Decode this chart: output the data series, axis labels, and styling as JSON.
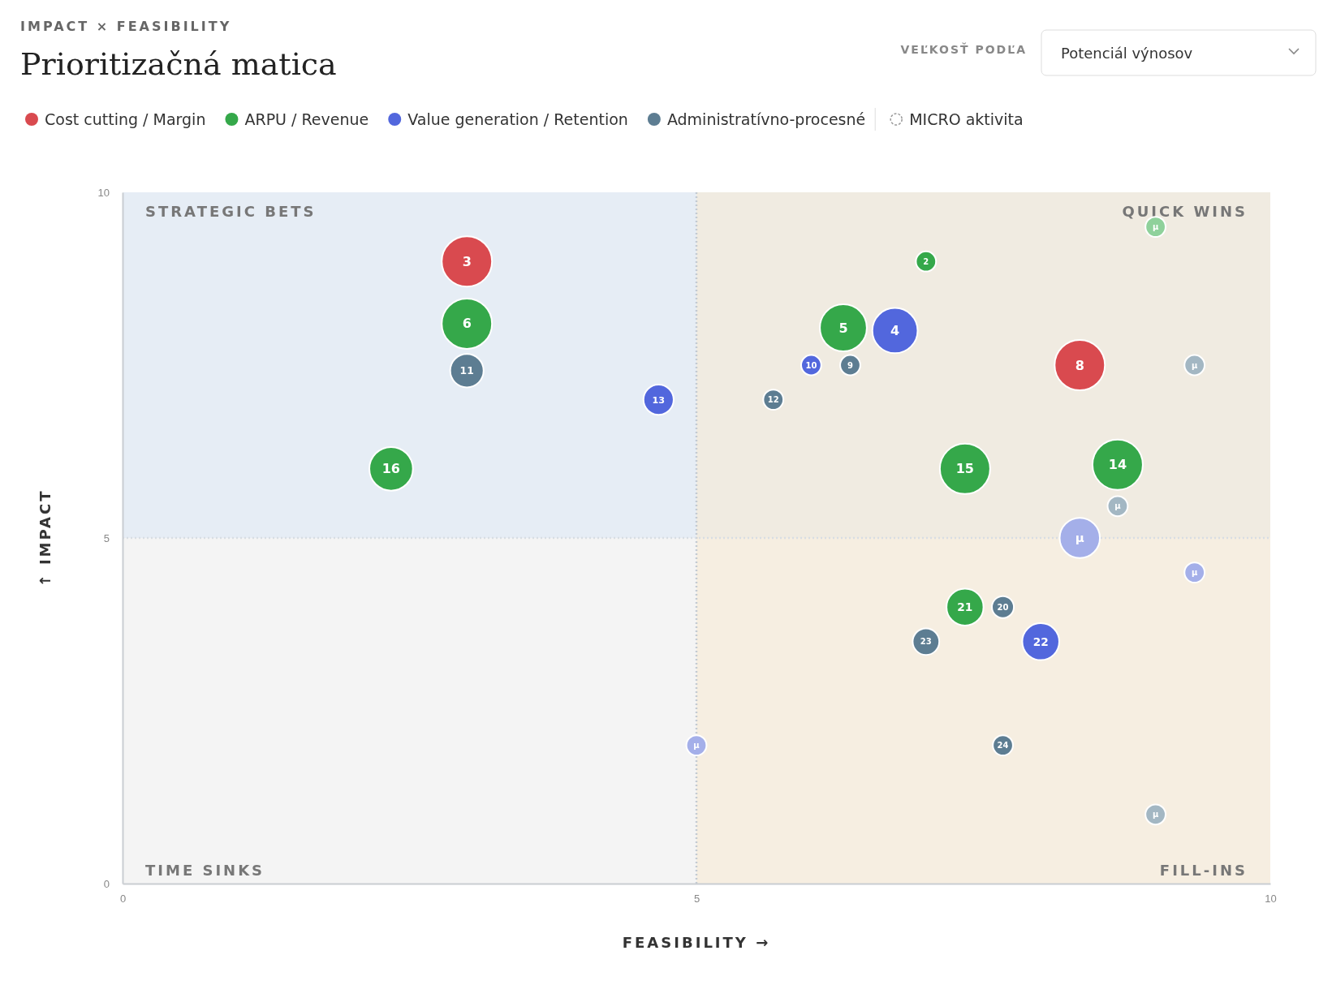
{
  "chart_data": {
    "type": "bubble",
    "title": "Prioritizačná matica",
    "subtitle": "IMPACT × FEASIBILITY",
    "xlabel": "FEASIBILITY →",
    "ylabel": "↑ IMPACT",
    "xlim": [
      0,
      10
    ],
    "ylim": [
      0,
      10
    ],
    "xticks": [
      0,
      5,
      10
    ],
    "yticks": [
      0,
      5,
      10
    ],
    "grid": false,
    "legend": "top",
    "marker": "circle",
    "annotations": [
      "VEĽKOSŤ PODĽA",
      "Potenciál výnosov",
      "MICRO aktivita",
      "STRATEGIC BETS",
      "QUICK WINS",
      "TIME SINKS",
      "FILL-INS",
      {
        "text": "3",
        "x": 3.0,
        "y": 9.0
      },
      {
        "text": "8",
        "x": 8.34,
        "y": 7.5
      },
      {
        "text": "6",
        "x": 3.0,
        "y": 8.1
      },
      {
        "text": "16",
        "x": 2.34,
        "y": 6.0
      },
      {
        "text": "2",
        "x": 7.0,
        "y": 9.0
      },
      {
        "text": "5",
        "x": 6.28,
        "y": 8.04
      },
      {
        "text": "15",
        "x": 7.34,
        "y": 6.0
      },
      {
        "text": "14",
        "x": 8.67,
        "y": 6.06
      },
      {
        "text": "21",
        "x": 7.34,
        "y": 4.0
      },
      {
        "text": "μ",
        "x": 9.0,
        "y": 9.5
      },
      {
        "text": "4",
        "x": 6.73,
        "y": 8.0
      },
      {
        "text": "13",
        "x": 4.67,
        "y": 7.0
      },
      {
        "text": "10",
        "x": 6.0,
        "y": 7.5
      },
      {
        "text": "22",
        "x": 8.0,
        "y": 3.5
      },
      {
        "text": "μ",
        "x": 8.34,
        "y": 5.0
      },
      {
        "text": "μ",
        "x": 9.34,
        "y": 4.5
      },
      {
        "text": "μ",
        "x": 5.0,
        "y": 2.0
      },
      {
        "text": "11",
        "x": 3.0,
        "y": 7.42
      },
      {
        "text": "9",
        "x": 6.34,
        "y": 7.5
      },
      {
        "text": "12",
        "x": 5.67,
        "y": 7.0
      },
      {
        "text": "20",
        "x": 7.67,
        "y": 4.0
      },
      {
        "text": "23",
        "x": 7.0,
        "y": 3.5
      },
      {
        "text": "24",
        "x": 7.67,
        "y": 2.0
      },
      {
        "text": "μ",
        "x": 9.34,
        "y": 7.5
      },
      {
        "text": "μ",
        "x": 8.67,
        "y": 5.46
      },
      {
        "text": "μ",
        "x": 9.0,
        "y": 1.0
      }
    ],
    "ref_lines": [
      {
        "axis": "x",
        "value": 5,
        "line_style": "dotted",
        "color": "#c3cad2"
      },
      {
        "axis": "y",
        "value": 5,
        "line_style": "dotted",
        "color": "#d8dde3"
      }
    ],
    "bands": [
      {
        "axis": "y",
        "from": 5,
        "to": 10,
        "color": "#dce8f5"
      },
      {
        "axis": "x",
        "from": 5,
        "to": 10,
        "color": "#f7ead3"
      }
    ],
    "series": [
      {
        "name": "Cost cutting / Margin",
        "color": "#d94a4f",
        "x": [
          3.0,
          8.34
        ],
        "values": [
          9.0,
          7.5
        ],
        "sizes": [
          1,
          1
        ]
      },
      {
        "name": "ARPU / Revenue",
        "color": "#35a84a",
        "x": [
          3.0,
          2.34,
          7.0,
          6.28,
          7.34,
          8.67,
          7.34,
          9.0
        ],
        "values": [
          8.1,
          6.0,
          9.0,
          8.04,
          6.0,
          6.06,
          4.0,
          9.5
        ],
        "sizes": [
          1,
          0.75,
          0.16,
          0.87,
          1,
          1,
          0.54,
          0.16
        ],
        "colors": [
          "#35a84a",
          "#35a84a",
          "#35a84a",
          "#35a84a",
          "#35a84a",
          "#35a84a",
          "#35a84a",
          "#8fd19b"
        ]
      },
      {
        "name": "Value generation / Retention",
        "color": "#5267dd",
        "x": [
          6.73,
          4.67,
          6.0,
          8.0,
          8.34,
          9.34,
          5.0
        ],
        "values": [
          8.0,
          7.0,
          7.5,
          3.5,
          5.0,
          4.5,
          2.0
        ],
        "sizes": [
          0.81,
          0.36,
          0.16,
          0.54,
          0.64,
          0.16,
          0.16
        ],
        "colors": [
          "#5267dd",
          "#5267dd",
          "#5267dd",
          "#5267dd",
          "#a4afe9",
          "#a4afe9",
          "#a4afe9"
        ]
      },
      {
        "name": "Administratívno-procesné",
        "color": "#5d7d92",
        "x": [
          3.0,
          6.34,
          5.67,
          7.67,
          7.0,
          7.67,
          9.34,
          8.67,
          9.0
        ],
        "values": [
          7.42,
          7.5,
          7.0,
          4.0,
          3.5,
          2.0,
          7.5,
          5.46,
          1.0
        ],
        "sizes": [
          0.44,
          0.16,
          0.16,
          0.19,
          0.28,
          0.16,
          0.16,
          0.16,
          0.16
        ],
        "colors": [
          "#5d7d92",
          "#5d7d92",
          "#5d7d92",
          "#5d7d92",
          "#5d7d92",
          "#5d7d92",
          "#a3b7c3",
          "#a3b7c3",
          "#a3b7c3"
        ]
      }
    ]
  }
}
